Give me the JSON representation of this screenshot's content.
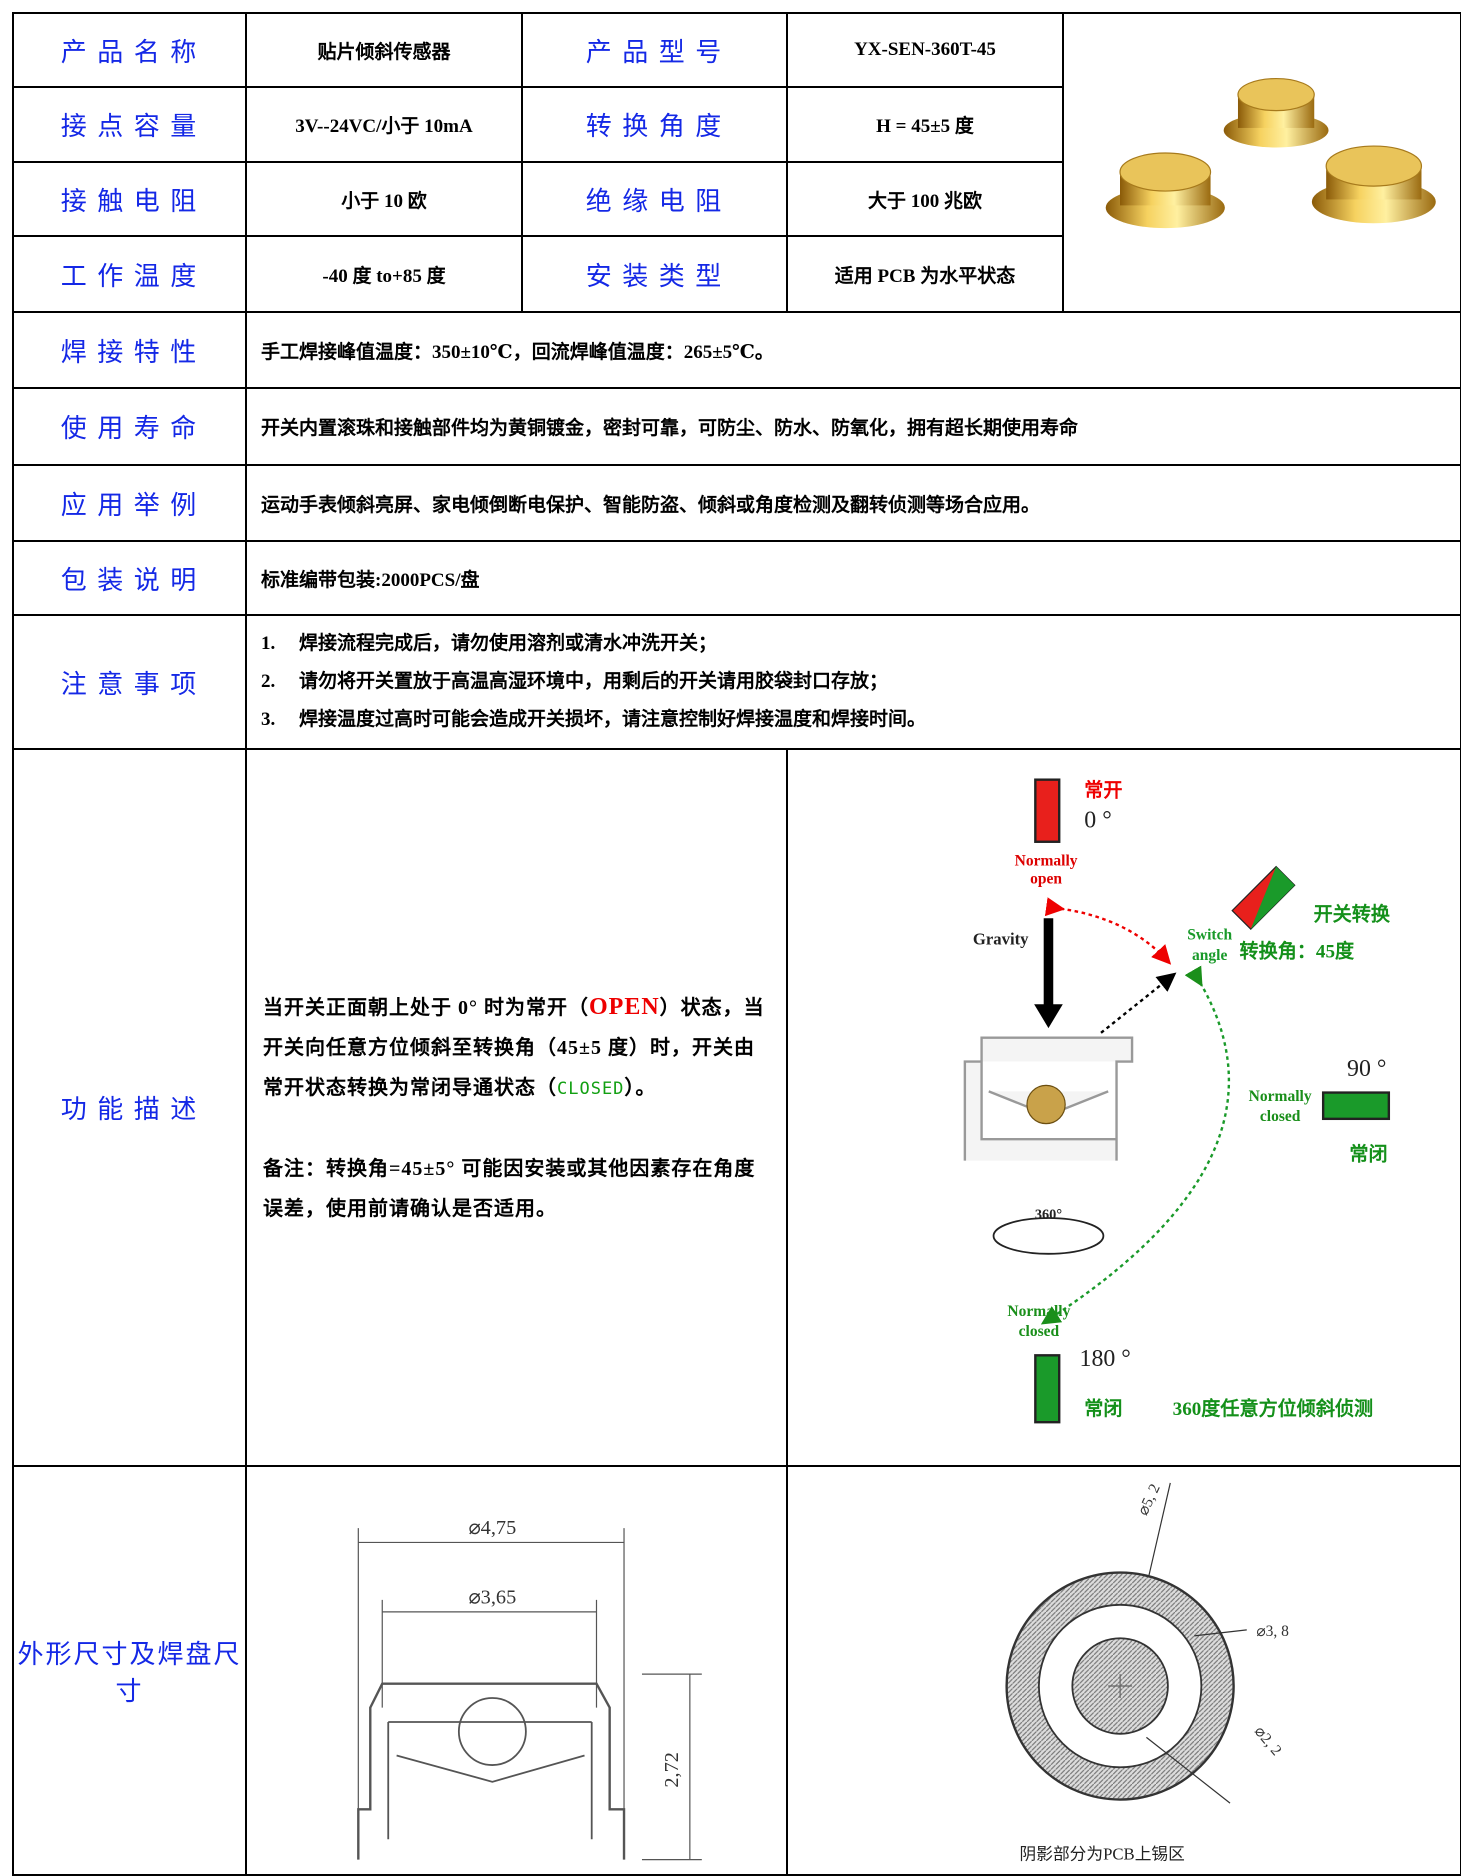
{
  "specs": [
    {
      "label": "产 品 名 称",
      "value": "贴片倾斜传感器",
      "label2": "产 品 型 号",
      "value2": "YX-SEN-360T-45"
    },
    {
      "label": "接 点 容 量",
      "value": "3V--24VC/小于  10mA",
      "label2": "转 换 角 度",
      "value2": "H  = 45±5 度"
    },
    {
      "label": "接 触 电 阻",
      "value": "小于 10 欧",
      "label2": "绝 缘 电 阻",
      "value2": "大于 100 兆欧"
    },
    {
      "label": "工 作 温 度",
      "value": "-40 度 to+85 度",
      "label2": "安 装 类 型",
      "value2": "适用 PCB 为水平状态"
    }
  ],
  "rows": [
    {
      "label": "焊 接 特 性",
      "value": "手工焊接峰值温度：350±10℃，回流焊峰值温度：265±5℃。"
    },
    {
      "label": "使 用 寿 命",
      "value": "开关内置滚珠和接触部件均为黄铜镀金，密封可靠，可防尘、防水、防氧化，拥有超长期使用寿命"
    },
    {
      "label": "应 用 举 例",
      "value": "运动手表倾斜亮屏、家电倾倒断电保护、智能防盗、倾斜或角度检测及翻转侦测等场合应用。"
    },
    {
      "label": "包 装 说 明",
      "value": "标准编带包装:2000PCS/盘"
    }
  ],
  "notes": {
    "label": "注 意 事 项",
    "items": [
      {
        "num": "1.",
        "text": "焊接流程完成后，请勿使用溶剂或清水冲洗开关；"
      },
      {
        "num": "2.",
        "text": "请勿将开关置放于高温高湿环境中，用剩后的开关请用胶袋封口存放；"
      },
      {
        "num": "3.",
        "text": "焊接温度过高时可能会造成开关损坏，请注意控制好焊接温度和焊接时间。"
      }
    ]
  },
  "function": {
    "label": "功 能 描 述",
    "description": [
      "当开关正面朝上处于 0° 时为常开（",
      "OPEN",
      "）状态，当开关向任意方位倾斜至转换角（45±5 度）时，开关由常开状态转换为常闭导通状态（",
      "CLOSED",
      "）。"
    ],
    "remark": "备注：转换角=45±5° 可能因安装或其他因素存在角度误差，使用前请确认是否适用。",
    "diagram": {
      "open_cn": "常开",
      "angle_0": "0 °",
      "normally_open": [
        "Normally",
        "open"
      ],
      "gravity": "Gravity",
      "switch_cn": "开关转换",
      "switch_angle": [
        "Switch",
        "angle"
      ],
      "switch_angle_cn": "转换角：45度",
      "angle_90": "90 °",
      "normally_closed_90": [
        "Normally",
        "closed"
      ],
      "closed_90_cn": "常闭",
      "rotation": "360°",
      "normally_closed_180": [
        "Normally",
        "closed"
      ],
      "angle_180": "180 °",
      "closed_180_cn": "常闭",
      "caption": "360度任意方位倾斜侦测"
    }
  },
  "dimensions": {
    "label": "外形尺寸及焊盘尺寸",
    "outer_diameter": "⌀4,75",
    "inner_diameter": "⌀3,65",
    "height": "2,72",
    "pad_outer": "⌀5, 2",
    "pad_ring": "⌀3, 8",
    "pad_inner": "⌀2, 2",
    "pad_note": "阴影部分为PCB上锡区"
  }
}
